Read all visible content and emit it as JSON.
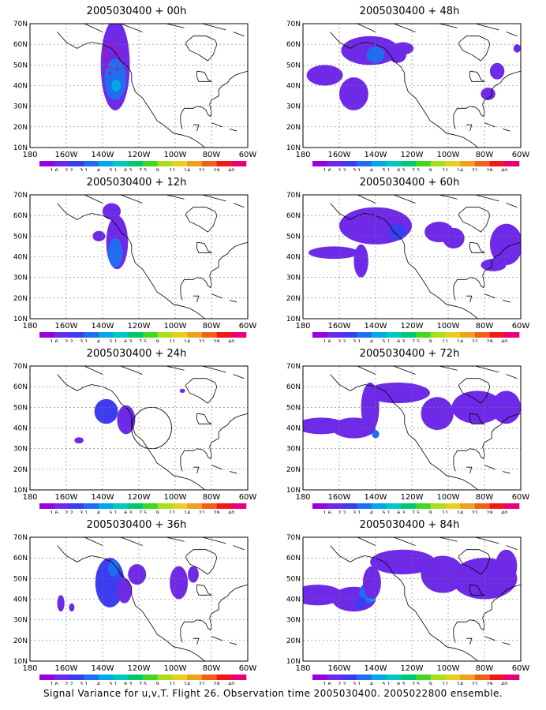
{
  "caption": "Signal Variance for u,v,T. Flight 26. Observation time 2005030400. 2005022800 ensemble.",
  "lat_labels": [
    "70N",
    "60N",
    "50N",
    "40N",
    "30N",
    "20N",
    "10N"
  ],
  "lon_labels": [
    "180",
    "160W",
    "140W",
    "120W",
    "100W",
    "80W",
    "60W"
  ],
  "colorbar": {
    "labels": [
      "1.6",
      "2.2",
      "3.1",
      "4",
      "5.1",
      "6.3",
      "7.5",
      "9",
      "11",
      "14",
      "21",
      "29",
      "40"
    ],
    "colors": [
      "#9a00dc",
      "#6f2ae8",
      "#3c3cf0",
      "#1f6ef0",
      "#00a8e8",
      "#00c8c0",
      "#00c870",
      "#40d820",
      "#a8e020",
      "#e8d020",
      "#f0a020",
      "#f06018",
      "#f01818",
      "#e8007a"
    ]
  },
  "frames": [
    {
      "title": "2005030400 + 00h",
      "col": 0,
      "row": 0,
      "blobs": [
        [
          -133,
          50,
          8,
          22,
          1
        ],
        [
          -133,
          43,
          6,
          10,
          3
        ],
        [
          -132.5,
          40,
          2.5,
          3,
          4
        ]
      ],
      "dots": true,
      "circle": null
    },
    {
      "title": "2005030400 + 12h",
      "col": 0,
      "row": 1,
      "blobs": [
        [
          -135,
          62,
          5,
          4,
          1
        ],
        [
          -142,
          50,
          3.5,
          2.5,
          1
        ],
        [
          -132,
          47,
          6,
          13,
          1
        ],
        [
          -133,
          42,
          4,
          7,
          3
        ]
      ],
      "dots": false,
      "circle": null
    },
    {
      "title": "2005030400 + 24h",
      "col": 0,
      "row": 2,
      "blobs": [
        [
          -138,
          48,
          6.5,
          6,
          2
        ],
        [
          -127,
          44,
          5,
          7,
          1
        ],
        [
          -96,
          58,
          1.5,
          1,
          1
        ],
        [
          -153,
          34,
          2.5,
          1.5,
          1
        ]
      ],
      "dots": false,
      "circle": [
        -113,
        40,
        11,
        10
      ]
    },
    {
      "title": "2005030400 + 36h",
      "col": 0,
      "row": 3,
      "blobs": [
        [
          -136,
          48,
          8,
          12,
          2
        ],
        [
          -134,
          55,
          3,
          4,
          3
        ],
        [
          -128,
          44,
          4,
          6,
          1
        ],
        [
          -98,
          48,
          5,
          8,
          1
        ],
        [
          -90,
          52,
          3,
          4,
          1
        ],
        [
          -157,
          36,
          1.5,
          2,
          1
        ],
        [
          -163,
          38,
          2,
          4,
          1
        ],
        [
          -121,
          52,
          5,
          5,
          1
        ]
      ],
      "dots": false,
      "circle": null
    },
    {
      "title": "2005030400 + 48h",
      "col": 1,
      "row": 0,
      "blobs": [
        [
          -143,
          57,
          16,
          7,
          1
        ],
        [
          -140,
          55,
          5,
          4,
          3
        ],
        [
          -128,
          55,
          5,
          4,
          1
        ],
        [
          -168,
          45,
          10,
          5,
          1
        ],
        [
          -152,
          36,
          8,
          8,
          1
        ],
        [
          -125,
          58,
          6,
          3,
          1
        ],
        [
          -73,
          47,
          4,
          4,
          1
        ],
        [
          -78,
          36,
          4,
          3,
          1
        ],
        [
          -62,
          58,
          2,
          2,
          1
        ]
      ],
      "dots": false,
      "circle": null
    },
    {
      "title": "2005030400 + 60h",
      "col": 1,
      "row": 1,
      "blobs": [
        [
          -140,
          55,
          20,
          9,
          1
        ],
        [
          -128,
          52,
          5,
          4,
          2
        ],
        [
          -148,
          38,
          4,
          8,
          1
        ],
        [
          -163,
          42,
          14,
          3,
          1
        ],
        [
          -105,
          52,
          8,
          5,
          1
        ],
        [
          -97,
          49,
          6,
          5,
          1
        ],
        [
          -75,
          36,
          7,
          3,
          1
        ],
        [
          -68,
          46,
          9,
          10,
          1
        ]
      ],
      "dots": false,
      "circle": null
    },
    {
      "title": "2005030400 + 72h",
      "col": 1,
      "row": 2,
      "blobs": [
        [
          -170,
          41,
          14,
          4,
          1
        ],
        [
          -152,
          40,
          12,
          5,
          1
        ],
        [
          -143,
          50,
          5,
          12,
          1
        ],
        [
          -128,
          57,
          18,
          5,
          1
        ],
        [
          -106,
          47,
          9,
          8,
          1
        ],
        [
          -84,
          50,
          14,
          8,
          1
        ],
        [
          -68,
          50,
          8,
          8,
          1
        ],
        [
          -140,
          37,
          2,
          2,
          3
        ],
        [
          -135,
          58,
          4,
          2,
          1
        ]
      ],
      "dots": false,
      "circle": null
    },
    {
      "title": "2005030400 + 84h",
      "col": 1,
      "row": 3,
      "blobs": [
        [
          -172,
          42,
          14,
          5,
          1
        ],
        [
          -152,
          40,
          12,
          6,
          1
        ],
        [
          -144,
          43,
          5,
          5,
          3
        ],
        [
          -142,
          41,
          2,
          2,
          4
        ],
        [
          -142,
          48,
          5,
          8,
          1
        ],
        [
          -125,
          58,
          18,
          6,
          1
        ],
        [
          -103,
          52,
          12,
          9,
          1
        ],
        [
          -80,
          50,
          18,
          10,
          1
        ],
        [
          -68,
          56,
          6,
          8,
          1
        ],
        [
          -148,
          38,
          3,
          3,
          2
        ]
      ],
      "dots": false,
      "circle": null
    }
  ]
}
